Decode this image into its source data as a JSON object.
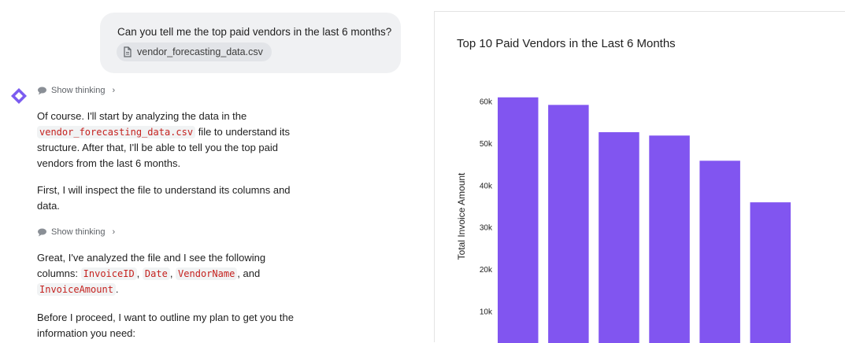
{
  "user_message": {
    "text": "Can you tell me the top paid vendors in the last 6 months?",
    "attachment": {
      "name": "vendor_forecasting_data.csv",
      "icon": "document-icon"
    }
  },
  "assistant": {
    "logo_icon": "gemini-star-icon",
    "thinking_label": "Show thinking",
    "p1": {
      "before": "Of course. I'll start by analyzing the data in the ",
      "code": "vendor_forecasting_data.csv",
      "after": " file to understand its structure. After that, I'll be able to tell you the top paid vendors from the last 6 months."
    },
    "p2": "First, I will inspect the file to understand its columns and data.",
    "p3": {
      "before": "Great, I've analyzed the file and I see the following columns: ",
      "col1": "InvoiceID",
      "sep1": ", ",
      "col2": "Date",
      "sep2": ", ",
      "col3": "VendorName",
      "sep3": ", and ",
      "col4": "InvoiceAmount",
      "after": "."
    },
    "p4": "Before I proceed, I want to outline my plan to get you the information you need:"
  },
  "chart_data": {
    "type": "bar",
    "title": "Top 10 Paid Vendors in the Last 6 Months",
    "xlabel": "",
    "ylabel": "Total Invoice Amount",
    "ytick_labels": [
      "10k",
      "20k",
      "30k",
      "40k",
      "50k",
      "60k"
    ],
    "ytick_values": [
      10000,
      20000,
      30000,
      40000,
      50000,
      60000
    ],
    "categories": [
      "",
      "",
      "",
      "",
      "",
      ""
    ],
    "values": [
      61000,
      59200,
      52700,
      51900,
      45900,
      36000
    ],
    "bar_color": "#8155f0",
    "grid": false
  }
}
